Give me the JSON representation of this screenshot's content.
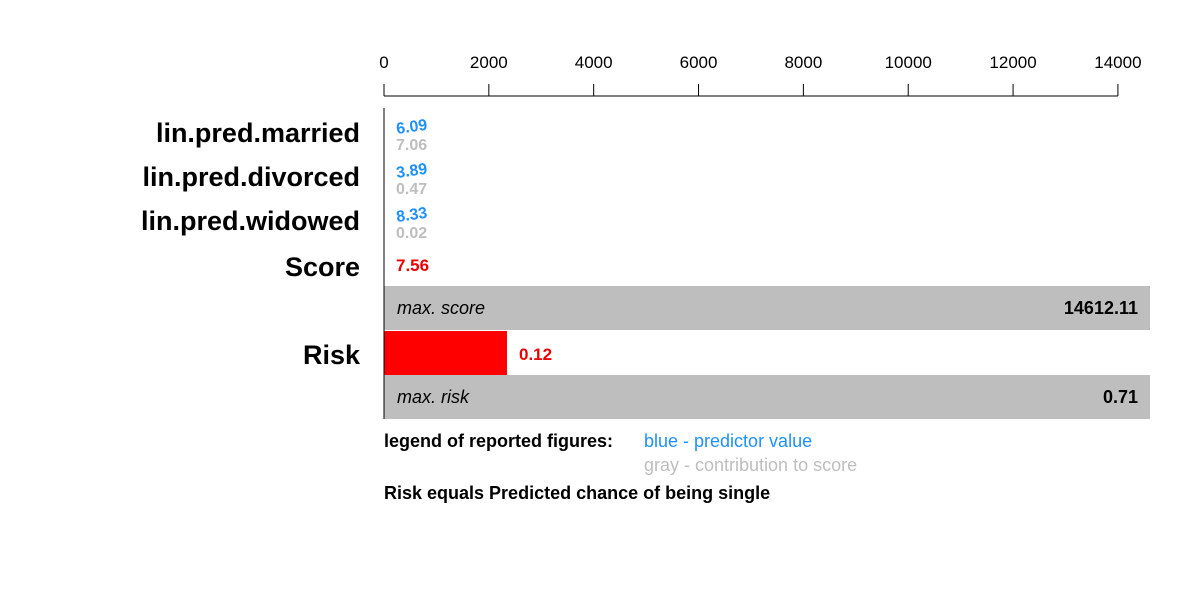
{
  "colors": {
    "predictor_value": "#1e90ff",
    "contribution": "#bebebe",
    "score": "#ee0000",
    "risk_bar": "#ff0000",
    "band": "#bebebe",
    "text": "#000000"
  },
  "chart_data": {
    "type": "bar",
    "x_axis": {
      "position": "top",
      "range": [
        0,
        14612.11
      ],
      "ticks": [
        0,
        2000,
        4000,
        6000,
        8000,
        10000,
        12000,
        14000
      ],
      "tick_labels": [
        "0",
        "2000",
        "4000",
        "6000",
        "8000",
        "10000",
        "12000",
        "14000"
      ]
    },
    "predictors": [
      {
        "name": "lin.pred.married",
        "value": "6.09",
        "contribution": "7.06"
      },
      {
        "name": "lin.pred.divorced",
        "value": "3.89",
        "contribution": "0.47"
      },
      {
        "name": "lin.pred.widowed",
        "value": "8.33",
        "contribution": "0.02"
      }
    ],
    "score": {
      "label": "Score",
      "value": 7.56,
      "text": "7.56"
    },
    "max_score": {
      "label": "max. score",
      "value": 14612.11,
      "text": "14612.11"
    },
    "risk": {
      "label": "Risk",
      "value": 0.12,
      "text": "0.12"
    },
    "max_risk": {
      "label": "max. risk",
      "value": 0.71,
      "text": "0.71"
    },
    "grid": false
  },
  "legend": {
    "title": "legend of reported figures:",
    "blue_text": "blue - predictor value",
    "gray_text": "gray - contribution to score",
    "note": "Risk equals Predicted chance of being single"
  }
}
